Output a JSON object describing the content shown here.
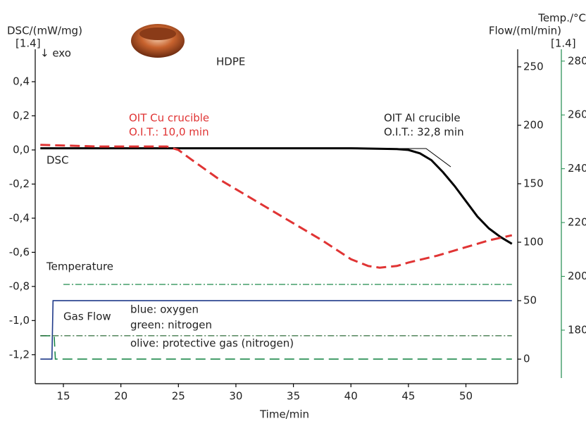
{
  "chart_data": {
    "type": "line",
    "title": "HDPE",
    "x_label": "Time/min",
    "y_label": "DSC/(mW/mg)",
    "y2_label": "Flow/(ml/min)",
    "y3_label": "Temp./°C",
    "y_unit_note": "[1.4]",
    "y3_unit_note": "[1.4]",
    "exo": "↓ exo",
    "annotations": [
      "OIT Cu crucible",
      "O.I.T.: 10,0 min",
      "OIT Al crucible",
      "O.I.T.: 32,8 min",
      "DSC",
      "Temperature",
      "Gas Flow",
      "blue: oxygen",
      "green: nitrogen",
      "olive: protective gas (nitrogen)"
    ],
    "xlim": [
      12.55,
      54.5
    ],
    "xticks": [
      15,
      20,
      25,
      30,
      35,
      40,
      45,
      50
    ],
    "ylim": [
      -1.37,
      0.59
    ],
    "yticks": [
      {
        "value": -1.2,
        "label": "-1,2"
      },
      {
        "value": -1.0,
        "label": "-1,0"
      },
      {
        "value": -0.8,
        "label": "-0,8"
      },
      {
        "value": -0.6,
        "label": "-0,6"
      },
      {
        "value": -0.4,
        "label": "-0,4"
      },
      {
        "value": -0.2,
        "label": "-0,2"
      },
      {
        "value": 0.0,
        "label": "0,0"
      },
      {
        "value": 0.2,
        "label": "0,2"
      },
      {
        "value": 0.4,
        "label": "0,4"
      }
    ],
    "y2lim": [
      -21,
      265
    ],
    "y2ticks": [
      0,
      50,
      100,
      150,
      200,
      250
    ],
    "y3lim": [
      160.1,
      284.4
    ],
    "y3ticks": [
      180,
      200,
      220,
      240,
      260,
      280
    ],
    "y3color": "#1f8a4c",
    "series": [
      {
        "color": "#000000",
        "dash": "solid",
        "width": 3,
        "axis": "y",
        "x": [
          13,
          15,
          20,
          25,
          30,
          35,
          40,
          44,
          45,
          46,
          47,
          48,
          49,
          50,
          51,
          52,
          53,
          54
        ],
        "values": [
          0.01,
          0.01,
          0.01,
          0.01,
          0.01,
          0.01,
          0.01,
          0.005,
          0,
          -0.02,
          -0.06,
          -0.13,
          -0.21,
          -0.3,
          -0.39,
          -0.46,
          -0.51,
          -0.55
        ]
      },
      {
        "color": "#e03434",
        "dash": "dashed",
        "width": 3,
        "axis": "y",
        "x": [
          13,
          18,
          24,
          25,
          26,
          28.5,
          30,
          32.5,
          35,
          37.5,
          40,
          41.5,
          42.5,
          44,
          45,
          47.5,
          50,
          52,
          54
        ],
        "values": [
          0.03,
          0.02,
          0.02,
          0.0,
          -0.05,
          -0.17,
          -0.23,
          -0.33,
          -0.43,
          -0.53,
          -0.64,
          -0.68,
          -0.69,
          -0.68,
          -0.66,
          -0.62,
          -0.57,
          -0.53,
          -0.5
        ]
      },
      {
        "color": "#1f8a4c",
        "dash": "dashdot",
        "width": 1.3,
        "axis": "y3",
        "x": [
          15,
          54
        ],
        "values": [
          197,
          197
        ]
      },
      {
        "color": "#1f3a8a",
        "dash": "solid",
        "width": 1.6,
        "axis": "y2",
        "x": [
          13,
          14,
          14.1,
          54
        ],
        "values": [
          0,
          0,
          50,
          50
        ]
      },
      {
        "color": "#1f8a4c",
        "dash": "dashed",
        "width": 1.6,
        "axis": "y2",
        "x": [
          13,
          14.2,
          14.3,
          54
        ],
        "values": [
          20,
          20,
          0,
          0
        ]
      },
      {
        "color": "#2f6b3a",
        "dash": "dashdot",
        "width": 1.3,
        "axis": "y2",
        "x": [
          13,
          54
        ],
        "values": [
          20,
          20
        ]
      }
    ]
  }
}
